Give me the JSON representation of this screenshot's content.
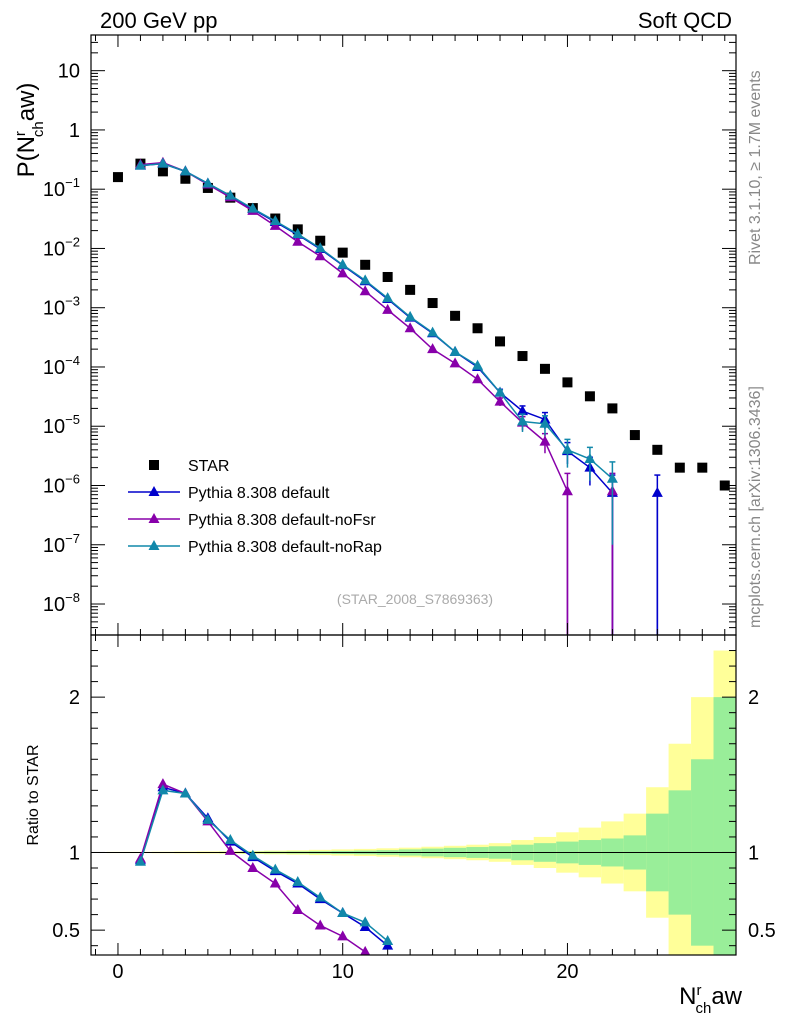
{
  "header": {
    "left": "200 GeV pp",
    "right": "Soft QCD",
    "ref_id": "(STAR_2008_S7869363)",
    "side_rivet": "Rivet 3.1.10, ≥ 1.7M events",
    "side_mcplots": "mcplots.cern.ch [arXiv:1306.3436]"
  },
  "axes": {
    "ylabel_main_prefix": "P(N",
    "ylabel_main_sub": "ch",
    "ylabel_main_sup": "r",
    "ylabel_main_suffix": "aw)",
    "ylabel_ratio": "Ratio to STAR",
    "xlabel_prefix": "N",
    "xlabel_sub": "ch",
    "xlabel_sup": "r",
    "xlabel_suffix": "aw"
  },
  "chart_data": [
    {
      "type": "scatter",
      "panel": "main",
      "yscale": "log",
      "xlim": [
        -1.2,
        27.5
      ],
      "ylim": [
        3e-09,
        40
      ],
      "x_ticks": [
        0,
        10,
        20
      ],
      "y_ticks": [
        "10^{-8}",
        "10^{-7}",
        "10^{-6}",
        "10^{-5}",
        "10^{-4}",
        "10^{-3}",
        "10^{-2}",
        "10^{-1}",
        "1",
        "10"
      ],
      "legend_position": "lower-left",
      "series": [
        {
          "name": "STAR",
          "color": "#000000",
          "marker": "square",
          "x": [
            0,
            1,
            2,
            3,
            4,
            5,
            6,
            7,
            8,
            9,
            10,
            11,
            12,
            13,
            14,
            15,
            16,
            17,
            18,
            19,
            20,
            21,
            22,
            23,
            24,
            25,
            26,
            27
          ],
          "y": [
            0.16,
            0.27,
            0.2,
            0.15,
            0.105,
            0.072,
            0.048,
            0.032,
            0.021,
            0.0135,
            0.0085,
            0.0053,
            0.0033,
            0.002,
            0.0012,
            0.00073,
            0.00045,
            0.00027,
            0.000153,
            9.3e-05,
            5.5e-05,
            3.2e-05,
            2e-05,
            7.1e-06,
            4e-06,
            2e-06,
            2e-06,
            1e-06
          ]
        },
        {
          "name": "Pythia 8.308 default",
          "color": "#0000cc",
          "marker": "triangle",
          "x": [
            1,
            2,
            3,
            4,
            5,
            6,
            7,
            8,
            9,
            10,
            11,
            12,
            13,
            14,
            15,
            16,
            17,
            18,
            19,
            20,
            21,
            22,
            24
          ],
          "y": [
            0.25,
            0.27,
            0.2,
            0.125,
            0.077,
            0.046,
            0.028,
            0.017,
            0.0098,
            0.0052,
            0.0028,
            0.0014,
            0.00068,
            0.00037,
            0.00018,
            0.0001,
            3.7e-05,
            1.8e-05,
            1.3e-05,
            3.8e-06,
            2e-06,
            7.5e-07,
            7.5e-07
          ],
          "yerr": [
            0,
            0,
            0,
            0,
            0,
            0,
            0,
            0,
            0,
            0,
            0,
            0,
            0,
            0,
            0,
            0,
            5e-06,
            4e-06,
            4e-06,
            1.5e-06,
            1e-06,
            7.5e-07,
            7.5e-07
          ]
        },
        {
          "name": "Pythia 8.308 default-noFsr",
          "color": "#8800aa",
          "marker": "triangle",
          "x": [
            1,
            2,
            3,
            4,
            5,
            6,
            7,
            8,
            9,
            10,
            11,
            12,
            13,
            14,
            15,
            16,
            17,
            18,
            19,
            20,
            22
          ],
          "y": [
            0.26,
            0.28,
            0.2,
            0.12,
            0.073,
            0.043,
            0.024,
            0.013,
            0.0074,
            0.0038,
            0.0019,
            0.00092,
            0.00045,
            0.0002,
            0.000115,
            6.2e-05,
            2.6e-05,
            1.15e-05,
            5.5e-06,
            8e-07,
            8e-07
          ],
          "yerr": [
            0,
            0,
            0,
            0,
            0,
            0,
            0,
            0,
            0,
            0,
            0,
            0,
            0,
            0,
            0,
            0,
            4e-06,
            3e-06,
            2e-06,
            8e-07,
            8e-07
          ]
        },
        {
          "name": "Pythia 8.308 default-noRap",
          "color": "#1188aa",
          "marker": "triangle",
          "x": [
            1,
            2,
            3,
            4,
            5,
            6,
            7,
            8,
            9,
            10,
            11,
            12,
            13,
            14,
            15,
            16,
            17,
            18,
            19,
            20,
            21,
            22
          ],
          "y": [
            0.25,
            0.27,
            0.2,
            0.125,
            0.078,
            0.047,
            0.029,
            0.0175,
            0.0101,
            0.0053,
            0.0029,
            0.00145,
            0.0007,
            0.00038,
            0.00018,
            0.000105,
            3.7e-05,
            1.2e-05,
            1.1e-05,
            4e-06,
            2.8e-06,
            1.3e-06
          ],
          "yerr": [
            0,
            0,
            0,
            0,
            0,
            0,
            0,
            0,
            0,
            0,
            0,
            0,
            0,
            0,
            0,
            0,
            4e-06,
            4e-06,
            4e-06,
            2e-06,
            1.6e-06,
            1.2e-06
          ]
        }
      ]
    },
    {
      "type": "line",
      "panel": "ratio",
      "ylabel": "Ratio to STAR",
      "xlim": [
        -1.2,
        27.5
      ],
      "ylim": [
        0.34,
        2.4
      ],
      "y_ticks": [
        0.5,
        1,
        2
      ],
      "uncertainty_bands": {
        "x_edges": [
          -0.5,
          0.5,
          1.5,
          2.5,
          3.5,
          4.5,
          5.5,
          6.5,
          7.5,
          8.5,
          9.5,
          10.5,
          11.5,
          12.5,
          13.5,
          14.5,
          15.5,
          16.5,
          17.5,
          18.5,
          19.5,
          20.5,
          21.5,
          22.5,
          23.5,
          24.5,
          25.5,
          26.5,
          27.5
        ],
        "stat_halfwidth": [
          0.002,
          0.002,
          0.002,
          0.003,
          0.003,
          0.004,
          0.005,
          0.006,
          0.007,
          0.008,
          0.01,
          0.012,
          0.015,
          0.02,
          0.025,
          0.03,
          0.035,
          0.04,
          0.05,
          0.06,
          0.07,
          0.08,
          0.09,
          0.11,
          0.25,
          0.4,
          0.6,
          1.0
        ],
        "total_halfwidth": [
          0.004,
          0.004,
          0.005,
          0.006,
          0.007,
          0.008,
          0.01,
          0.012,
          0.014,
          0.017,
          0.02,
          0.023,
          0.027,
          0.031,
          0.037,
          0.043,
          0.05,
          0.06,
          0.08,
          0.1,
          0.13,
          0.16,
          0.2,
          0.25,
          0.42,
          0.7,
          1.0,
          1.3
        ],
        "stat_color": "#99ee99",
        "total_color": "#ffff99"
      },
      "series": [
        {
          "name": "Pythia 8.308 default",
          "color": "#0000cc",
          "x": [
            1,
            2,
            3,
            4,
            5,
            6,
            7,
            8,
            9,
            10,
            11,
            12
          ],
          "y": [
            0.95,
            1.42,
            1.38,
            1.22,
            1.07,
            0.97,
            0.88,
            0.8,
            0.7,
            0.61,
            0.52,
            0.4
          ]
        },
        {
          "name": "Pythia 8.308 default-noFsr",
          "color": "#8800aa",
          "x": [
            1,
            2,
            3,
            4,
            5,
            6,
            7,
            8,
            9,
            10,
            11
          ],
          "y": [
            0.96,
            1.44,
            1.38,
            1.2,
            1.01,
            0.9,
            0.8,
            0.63,
            0.53,
            0.46,
            0.36
          ]
        },
        {
          "name": "Pythia 8.308 default-noRap",
          "color": "#1188aa",
          "x": [
            1,
            2,
            3,
            4,
            5,
            6,
            7,
            8,
            9,
            10,
            11,
            12
          ],
          "y": [
            0.94,
            1.4,
            1.38,
            1.21,
            1.08,
            0.98,
            0.89,
            0.81,
            0.71,
            0.61,
            0.55,
            0.43
          ]
        }
      ]
    }
  ]
}
